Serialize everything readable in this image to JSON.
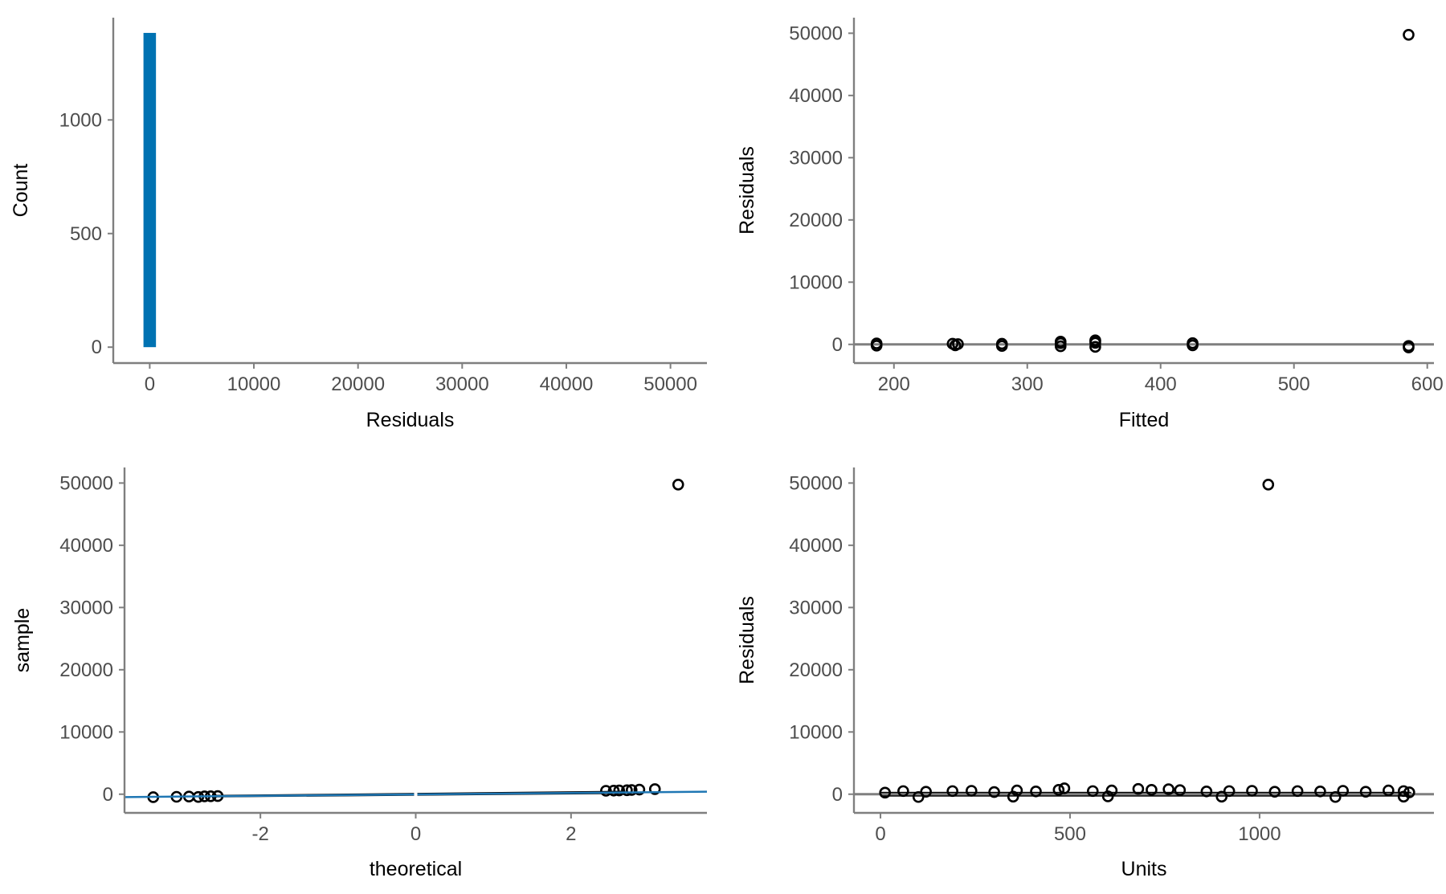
{
  "chart_data": [
    {
      "panel": "top-left",
      "type": "bar",
      "xlabel": "Residuals",
      "ylabel": "Count",
      "xlim": [
        -3500,
        53500
      ],
      "ylim": [
        -70,
        1450
      ],
      "xticks": [
        "0",
        "10000",
        "20000",
        "30000",
        "40000",
        "50000"
      ],
      "yticks": [
        "0",
        "500",
        "1000"
      ],
      "bins": [
        {
          "x0": -600,
          "x1": 600,
          "count": 1383
        }
      ],
      "bar_color": "#0072B2"
    },
    {
      "panel": "top-right",
      "type": "scatter",
      "xlabel": "Fitted",
      "ylabel": "Residuals",
      "xlim": [
        170,
        605
      ],
      "ylim": [
        -3000,
        52500
      ],
      "xticks": [
        "200",
        "300",
        "400",
        "500",
        "600"
      ],
      "yticks": [
        "0",
        "10000",
        "20000",
        "30000",
        "40000",
        "50000"
      ],
      "hline": 0,
      "points": [
        {
          "x": 187,
          "y": -200
        },
        {
          "x": 187,
          "y": 150
        },
        {
          "x": 244,
          "y": 100
        },
        {
          "x": 246,
          "y": -150
        },
        {
          "x": 248,
          "y": 50
        },
        {
          "x": 281,
          "y": -250
        },
        {
          "x": 281,
          "y": 100
        },
        {
          "x": 325,
          "y": -300
        },
        {
          "x": 325,
          "y": 200
        },
        {
          "x": 325,
          "y": 450
        },
        {
          "x": 351,
          "y": -400
        },
        {
          "x": 351,
          "y": 250
        },
        {
          "x": 351,
          "y": 550
        },
        {
          "x": 351,
          "y": 650
        },
        {
          "x": 424,
          "y": -150
        },
        {
          "x": 424,
          "y": 200
        },
        {
          "x": 586,
          "y": -500
        },
        {
          "x": 586,
          "y": -250
        },
        {
          "x": 586,
          "y": 49750
        }
      ]
    },
    {
      "panel": "bottom-left",
      "type": "scatter",
      "xlabel": "theoretical",
      "ylabel": "sample",
      "xlim": [
        -3.75,
        3.75
      ],
      "ylim": [
        -3000,
        52500
      ],
      "xticks": [
        "-2",
        "0",
        "2"
      ],
      "yticks": [
        "0",
        "10000",
        "20000",
        "30000",
        "40000",
        "50000"
      ],
      "reference_line": {
        "intercept": -30,
        "slope": 115,
        "color": "#1F77B4"
      },
      "band": {
        "x_from": -2.6,
        "x_to": 2.7,
        "y_low_start": -520,
        "y_low_end": 40,
        "y_high_start": -120,
        "y_high_end": 560
      },
      "points": [
        {
          "x": -3.38,
          "y": -480
        },
        {
          "x": -3.08,
          "y": -420
        },
        {
          "x": -2.92,
          "y": -380
        },
        {
          "x": -2.8,
          "y": -440
        },
        {
          "x": -2.72,
          "y": -350
        },
        {
          "x": -2.64,
          "y": -330
        },
        {
          "x": -2.55,
          "y": -300
        },
        {
          "x": 2.45,
          "y": 550
        },
        {
          "x": 2.55,
          "y": 580
        },
        {
          "x": 2.62,
          "y": 600
        },
        {
          "x": 2.72,
          "y": 640
        },
        {
          "x": 2.78,
          "y": 680
        },
        {
          "x": 2.88,
          "y": 740
        },
        {
          "x": 3.08,
          "y": 820
        },
        {
          "x": 3.38,
          "y": 49750
        }
      ]
    },
    {
      "panel": "bottom-right",
      "type": "scatter",
      "xlabel": "Units",
      "ylabel": "Residuals",
      "xlim": [
        -70,
        1460
      ],
      "ylim": [
        -3000,
        52500
      ],
      "xticks": [
        "0",
        "500",
        "1000"
      ],
      "yticks": [
        "0",
        "10000",
        "20000",
        "30000",
        "40000",
        "50000"
      ],
      "hline": 0,
      "band": {
        "x_from": 0,
        "x_to": 1400,
        "y_low": -380,
        "y_high": 380
      },
      "points": [
        {
          "x": 12,
          "y": 250
        },
        {
          "x": 60,
          "y": 500
        },
        {
          "x": 120,
          "y": 400
        },
        {
          "x": 190,
          "y": 500
        },
        {
          "x": 240,
          "y": 550
        },
        {
          "x": 300,
          "y": 350
        },
        {
          "x": 360,
          "y": 600
        },
        {
          "x": 410,
          "y": 450
        },
        {
          "x": 470,
          "y": 700
        },
        {
          "x": 485,
          "y": 950
        },
        {
          "x": 560,
          "y": 500
        },
        {
          "x": 610,
          "y": 600
        },
        {
          "x": 680,
          "y": 850
        },
        {
          "x": 715,
          "y": 700
        },
        {
          "x": 760,
          "y": 800
        },
        {
          "x": 790,
          "y": 650
        },
        {
          "x": 860,
          "y": 450
        },
        {
          "x": 920,
          "y": 500
        },
        {
          "x": 980,
          "y": 550
        },
        {
          "x": 1040,
          "y": 400
        },
        {
          "x": 1100,
          "y": 500
        },
        {
          "x": 1160,
          "y": 450
        },
        {
          "x": 1220,
          "y": 550
        },
        {
          "x": 1280,
          "y": 400
        },
        {
          "x": 1340,
          "y": 600
        },
        {
          "x": 1380,
          "y": 500
        },
        {
          "x": 1395,
          "y": 300
        },
        {
          "x": 100,
          "y": -450
        },
        {
          "x": 350,
          "y": -400
        },
        {
          "x": 600,
          "y": -350
        },
        {
          "x": 900,
          "y": -400
        },
        {
          "x": 1200,
          "y": -450
        },
        {
          "x": 1380,
          "y": -400
        },
        {
          "x": 1023,
          "y": 49750
        }
      ]
    }
  ]
}
